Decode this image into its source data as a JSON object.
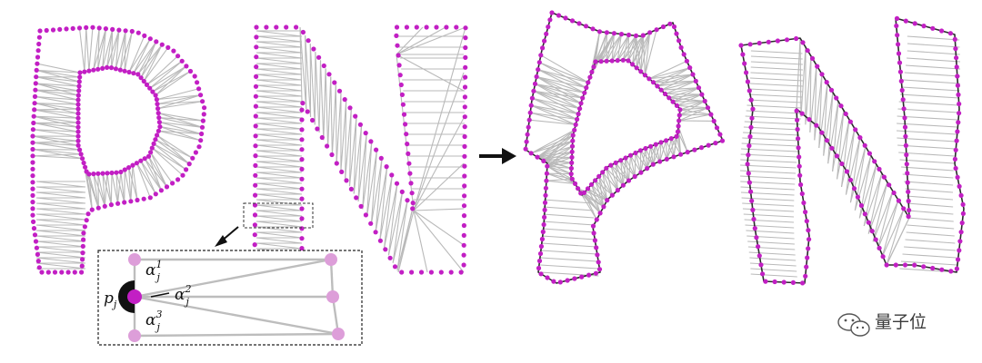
{
  "labels": {
    "point": "p",
    "point_sub": "j",
    "alpha": "α",
    "alpha_sub": "j",
    "alpha1_sup": "1",
    "alpha2_sup": "2",
    "alpha3_sup": "3"
  },
  "watermark": {
    "text": "量子位",
    "icon": "wechat-icon"
  },
  "colors": {
    "sample_point": "#c21fc4",
    "mesh_edge": "#b9b9b9",
    "outline": "#2b2b2b",
    "inset_point": "#dd9ed9"
  }
}
